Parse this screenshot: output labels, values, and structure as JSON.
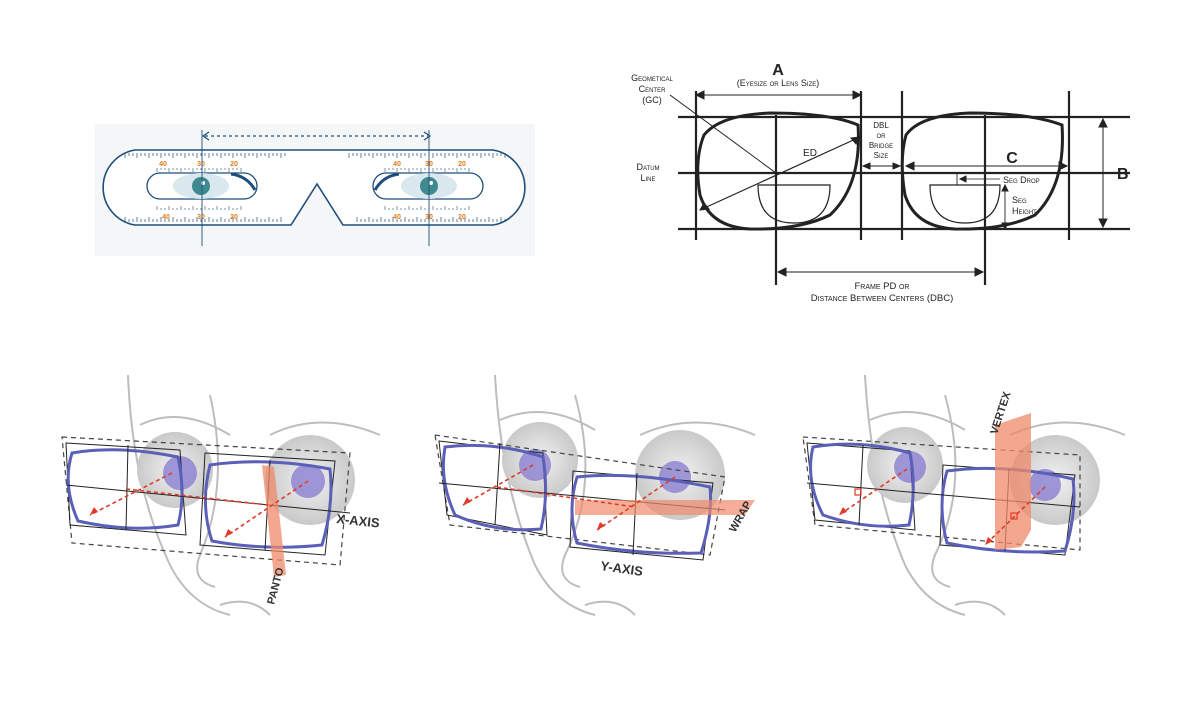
{
  "ruler": {
    "tick_labels_top_left": [
      "40",
      "30",
      "20"
    ],
    "tick_labels_bottom_left": [
      "40",
      "30",
      "20"
    ],
    "tick_labels_top_right": [
      "40",
      "30",
      "20"
    ],
    "tick_labels_bottom_right": [
      "40",
      "30",
      "20"
    ],
    "colors": {
      "frame": "#1f4e79",
      "ticks": "#e07b1f",
      "pupil": "#3e8a8f",
      "tint": "#d8e8ee"
    }
  },
  "frame_diagram": {
    "label_a": "A",
    "label_a_sub": "(Eyesize or Lens Size)",
    "label_b": "B",
    "label_c": "C",
    "label_ed": "ED",
    "label_gc": [
      "Geometical",
      "Center",
      "(GC)"
    ],
    "label_datum": [
      "Datum",
      "Line"
    ],
    "label_dbl": [
      "DBL",
      "or",
      "Bridge",
      "Size"
    ],
    "label_seg_drop": "Seg Drop",
    "label_seg_height": [
      "Seg",
      "Height"
    ],
    "label_frame_pd": [
      "Frame PD or",
      "Distance Between Centers (DBC)"
    ]
  },
  "axes": {
    "x_axis": {
      "label": "X-AXIS",
      "plane_label": "PANTO"
    },
    "y_axis": {
      "label": "Y-AXIS",
      "plane_label": "WRAP"
    },
    "z_axis": {
      "plane_label": "VERTEX"
    },
    "colors": {
      "frame": "#5a5fb8",
      "arrow": "#e03b2a",
      "plane": "#f08a6a",
      "iris": "#8a80d0"
    }
  }
}
